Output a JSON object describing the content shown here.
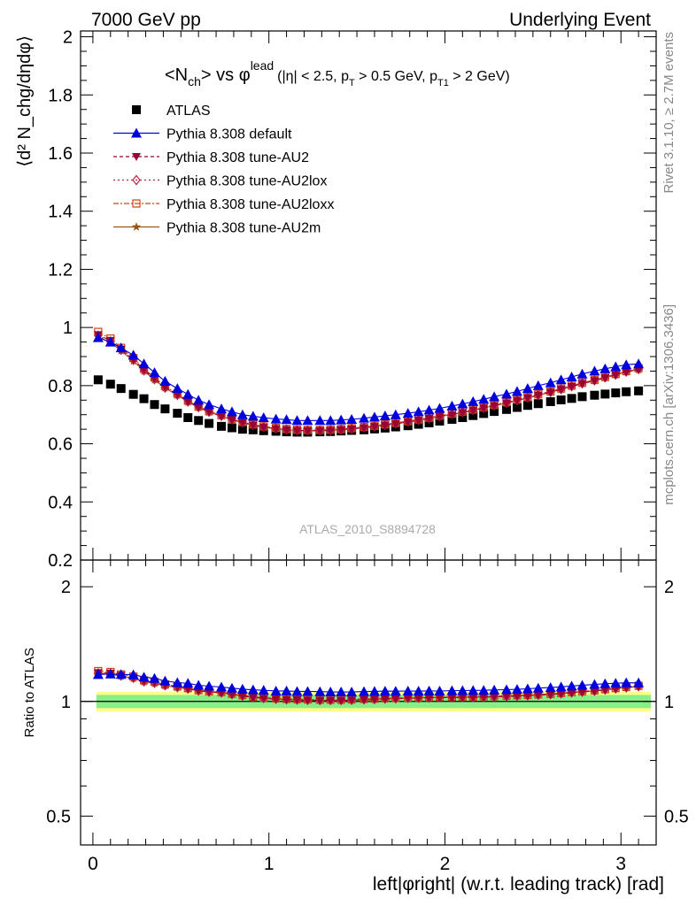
{
  "header": {
    "left": "7000 GeV pp",
    "right": "Underlying Event"
  },
  "side_labels": {
    "rivet": "Rivet 3.1.10, ≥ 2.7M events",
    "mcplots": "mcplots.cern.ch [arXiv:1306.3436]"
  },
  "watermark": "ATLAS_2010_S8894728",
  "plot_title": {
    "main": "<N",
    "main_sub": "ch",
    "vs": "> vs φ",
    "vs_sup": "lead",
    "cuts": "(|η| < 2.5, p",
    "cuts_sub1": "T",
    "cuts_mid": " > 0.5 GeV, p",
    "cuts_sub2": "T1",
    "cuts_end": " > 2 GeV)"
  },
  "colors": {
    "atlas": "#000000",
    "default": "#0000dd",
    "au2": "#990033",
    "au2lox": "#bb2244",
    "au2loxx": "#cc4411",
    "au2m": "#995511",
    "band_inner": "#88ee88",
    "band_outer": "#ffff88"
  },
  "chart_data": {
    "type": "scatter",
    "xlabel": "left|φright| (w.r.t. leading track) [rad]",
    "ylabel_main": "⟨d² N_chg/dηdφ⟩",
    "ylabel_ratio": "Ratio to ATLAS",
    "xlim": [
      -0.07,
      3.2
    ],
    "ylim_main": [
      0.2,
      2.02
    ],
    "ylim_ratio": [
      0.42,
      2.35
    ],
    "ratio_log_scale": true,
    "x_ticks": [
      "0",
      "1",
      "2",
      "3"
    ],
    "y_ticks_main": [
      "0.2",
      "0.4",
      "0.6",
      "0.8",
      "1",
      "1.2",
      "1.4",
      "1.6",
      "1.8",
      "2"
    ],
    "y_ticks_ratio": [
      "0.5",
      "1",
      "2"
    ],
    "legend_position": "top-left",
    "x": [
      0.03,
      0.1,
      0.16,
      0.23,
      0.29,
      0.35,
      0.41,
      0.48,
      0.54,
      0.6,
      0.66,
      0.73,
      0.79,
      0.85,
      0.91,
      0.97,
      1.04,
      1.1,
      1.16,
      1.22,
      1.29,
      1.35,
      1.41,
      1.47,
      1.54,
      1.6,
      1.66,
      1.72,
      1.79,
      1.85,
      1.91,
      1.97,
      2.04,
      2.1,
      2.16,
      2.22,
      2.28,
      2.35,
      2.41,
      2.47,
      2.53,
      2.6,
      2.66,
      2.72,
      2.78,
      2.85,
      2.91,
      2.97,
      3.03,
      3.1
    ],
    "series": [
      {
        "name": "ATLAS",
        "marker": "square",
        "values": [
          0.82,
          0.805,
          0.79,
          0.77,
          0.755,
          0.735,
          0.72,
          0.705,
          0.69,
          0.68,
          0.67,
          0.66,
          0.655,
          0.65,
          0.648,
          0.645,
          0.643,
          0.641,
          0.64,
          0.64,
          0.641,
          0.642,
          0.644,
          0.646,
          0.648,
          0.651,
          0.654,
          0.658,
          0.662,
          0.667,
          0.672,
          0.678,
          0.684,
          0.69,
          0.697,
          0.704,
          0.711,
          0.718,
          0.725,
          0.732,
          0.738,
          0.745,
          0.751,
          0.756,
          0.762,
          0.767,
          0.771,
          0.775,
          0.779,
          0.782
        ]
      },
      {
        "name": "Pythia 8.308 default",
        "marker": "triangle-up",
        "values": [
          0.965,
          0.95,
          0.93,
          0.905,
          0.875,
          0.845,
          0.815,
          0.79,
          0.77,
          0.75,
          0.735,
          0.72,
          0.71,
          0.7,
          0.695,
          0.69,
          0.685,
          0.683,
          0.68,
          0.68,
          0.68,
          0.68,
          0.682,
          0.684,
          0.688,
          0.692,
          0.696,
          0.7,
          0.705,
          0.71,
          0.716,
          0.722,
          0.73,
          0.737,
          0.745,
          0.753,
          0.762,
          0.771,
          0.78,
          0.79,
          0.8,
          0.81,
          0.82,
          0.83,
          0.84,
          0.85,
          0.858,
          0.865,
          0.872,
          0.875
        ]
      },
      {
        "name": "Pythia 8.308 tune-AU2",
        "marker": "triangle-down",
        "dash": "4,3",
        "values": [
          0.975,
          0.955,
          0.925,
          0.89,
          0.855,
          0.825,
          0.795,
          0.77,
          0.745,
          0.725,
          0.71,
          0.695,
          0.683,
          0.672,
          0.664,
          0.657,
          0.652,
          0.648,
          0.646,
          0.645,
          0.645,
          0.646,
          0.648,
          0.651,
          0.655,
          0.659,
          0.664,
          0.669,
          0.675,
          0.681,
          0.687,
          0.694,
          0.7,
          0.707,
          0.715,
          0.723,
          0.731,
          0.74,
          0.749,
          0.758,
          0.767,
          0.777,
          0.787,
          0.797,
          0.807,
          0.817,
          0.827,
          0.837,
          0.847,
          0.855
        ]
      },
      {
        "name": "Pythia 8.308 tune-AU2lox",
        "marker": "diamond-open",
        "dash": "2,3",
        "values": [
          0.972,
          0.952,
          0.923,
          0.888,
          0.852,
          0.822,
          0.793,
          0.768,
          0.745,
          0.726,
          0.71,
          0.696,
          0.684,
          0.673,
          0.665,
          0.658,
          0.653,
          0.649,
          0.647,
          0.646,
          0.646,
          0.647,
          0.649,
          0.652,
          0.656,
          0.66,
          0.665,
          0.67,
          0.676,
          0.682,
          0.688,
          0.695,
          0.702,
          0.709,
          0.716,
          0.724,
          0.732,
          0.741,
          0.75,
          0.759,
          0.768,
          0.778,
          0.788,
          0.798,
          0.808,
          0.818,
          0.828,
          0.838,
          0.848,
          0.857
        ]
      },
      {
        "name": "Pythia 8.308 tune-AU2loxx",
        "marker": "square-open",
        "dash": "6,2,2,2",
        "values": [
          0.985,
          0.962,
          0.93,
          0.895,
          0.858,
          0.828,
          0.798,
          0.772,
          0.748,
          0.728,
          0.712,
          0.698,
          0.686,
          0.675,
          0.667,
          0.66,
          0.655,
          0.651,
          0.649,
          0.648,
          0.648,
          0.649,
          0.651,
          0.654,
          0.658,
          0.662,
          0.667,
          0.672,
          0.678,
          0.684,
          0.69,
          0.697,
          0.704,
          0.711,
          0.718,
          0.726,
          0.734,
          0.743,
          0.752,
          0.761,
          0.77,
          0.78,
          0.79,
          0.8,
          0.81,
          0.82,
          0.83,
          0.84,
          0.85,
          0.86
        ]
      },
      {
        "name": "Pythia 8.308 tune-AU2m",
        "marker": "star",
        "values": [
          0.968,
          0.948,
          0.92,
          0.885,
          0.85,
          0.82,
          0.792,
          0.767,
          0.744,
          0.725,
          0.709,
          0.695,
          0.683,
          0.672,
          0.664,
          0.657,
          0.652,
          0.648,
          0.646,
          0.645,
          0.645,
          0.646,
          0.648,
          0.651,
          0.655,
          0.659,
          0.664,
          0.669,
          0.675,
          0.681,
          0.687,
          0.694,
          0.701,
          0.708,
          0.715,
          0.723,
          0.731,
          0.74,
          0.749,
          0.758,
          0.767,
          0.777,
          0.787,
          0.797,
          0.807,
          0.817,
          0.827,
          0.837,
          0.847,
          0.855
        ]
      }
    ],
    "ratio_band": {
      "inner": [
        0.96,
        1.04
      ],
      "outer": [
        0.94,
        1.06
      ]
    }
  }
}
